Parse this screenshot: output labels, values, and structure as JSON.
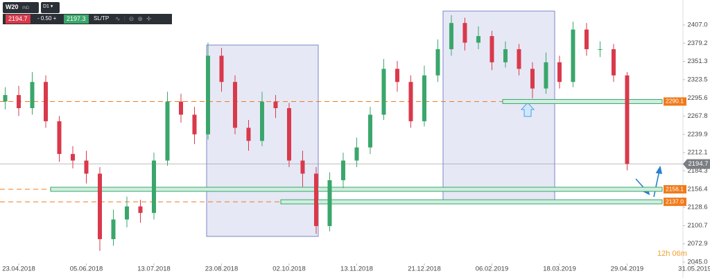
{
  "chart_data": {
    "type": "candlestick",
    "instrument": "W20",
    "market": "IND",
    "timeframe": "D1",
    "sell_price": "2194.7",
    "spread": "- 0.50 +",
    "buy_price": "2197.3",
    "order_button": "SL/TP",
    "countdown": "12h 06m",
    "open": [
      2290,
      2300,
      2280,
      2320,
      2260,
      2210,
      2200,
      2180,
      2080,
      2110,
      2130,
      2120,
      2200,
      2290,
      2270,
      2240,
      2360,
      2320,
      2250,
      2230,
      2290,
      2280,
      2200,
      2180,
      2100,
      2170,
      2200,
      2220,
      2270,
      2340,
      2320,
      2260,
      2330,
      2370,
      2410,
      2380,
      2390,
      2350,
      2370,
      2340,
      2310,
      2350,
      2320,
      2400,
      2370,
      2370,
      2330
    ],
    "high": [
      2312,
      2314,
      2335,
      2330,
      2268,
      2222,
      2215,
      2190,
      2125,
      2145,
      2140,
      2212,
      2305,
      2302,
      2282,
      2380,
      2372,
      2330,
      2262,
      2305,
      2300,
      2288,
      2215,
      2190,
      2182,
      2212,
      2235,
      2282,
      2355,
      2352,
      2330,
      2345,
      2385,
      2422,
      2418,
      2405,
      2398,
      2382,
      2378,
      2350,
      2365,
      2360,
      2412,
      2410,
      2382,
      2378,
      2335
    ],
    "low": [
      2278,
      2268,
      2270,
      2250,
      2198,
      2188,
      2165,
      2062,
      2070,
      2098,
      2105,
      2110,
      2192,
      2258,
      2225,
      2232,
      2305,
      2240,
      2215,
      2222,
      2265,
      2190,
      2160,
      2088,
      2092,
      2158,
      2190,
      2210,
      2262,
      2305,
      2250,
      2252,
      2320,
      2360,
      2368,
      2370,
      2338,
      2342,
      2330,
      2295,
      2302,
      2310,
      2312,
      2360,
      2358,
      2320,
      2185
    ],
    "close": [
      2300,
      2280,
      2320,
      2260,
      2210,
      2200,
      2180,
      2080,
      2110,
      2130,
      2120,
      2200,
      2290,
      2270,
      2240,
      2360,
      2320,
      2250,
      2230,
      2290,
      2280,
      2200,
      2180,
      2100,
      2170,
      2200,
      2220,
      2270,
      2340,
      2320,
      2260,
      2330,
      2370,
      2410,
      2380,
      2390,
      2350,
      2370,
      2340,
      2310,
      2350,
      2320,
      2400,
      2370,
      2370,
      2330,
      2195
    ],
    "up_color": "#3aa66b",
    "down_color": "#d9394b",
    "xlim": [
      -0.385,
      50.9
    ],
    "xticks": [
      {
        "value": 1,
        "label": "23.04.2018"
      },
      {
        "value": 6,
        "label": "05.06.2018"
      },
      {
        "value": 11,
        "label": "13.07.2018"
      },
      {
        "value": 16,
        "label": "23.08.2018"
      },
      {
        "value": 21,
        "label": "02.10.2018"
      },
      {
        "value": 26,
        "label": "13.11.2018"
      },
      {
        "value": 31,
        "label": "21.12.2018"
      },
      {
        "value": 36,
        "label": "06.02.2019"
      },
      {
        "value": 41,
        "label": "18.03.2019"
      },
      {
        "value": 46,
        "label": "29.04.2019"
      },
      {
        "value": 51,
        "label": "31.05.2019"
      }
    ],
    "ylim": [
      2040.8,
      2445.1
    ],
    "yticks": [
      {
        "value": 2407,
        "label": "2407.0"
      },
      2379.2,
      2351.3,
      2323.5,
      2295.6,
      2267.8,
      2239.9,
      2212.1,
      2184.3,
      2156.4,
      2128.6,
      2100.7,
      2072.9,
      {
        "value": 2045,
        "label": "2045.0"
      }
    ],
    "levels": [
      2290.1,
      2156.1,
      {
        "value": 2137,
        "label": "2137.0"
      }
    ],
    "level_color": "#f07a1a",
    "last_price": 2194.7,
    "grid": false
  }
}
